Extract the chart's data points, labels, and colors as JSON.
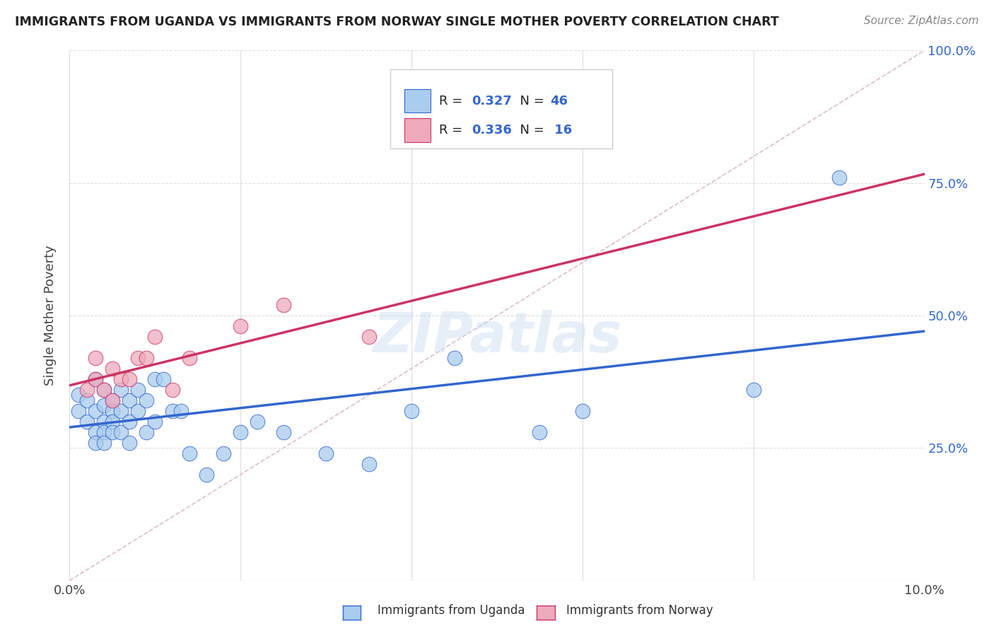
{
  "title": "IMMIGRANTS FROM UGANDA VS IMMIGRANTS FROM NORWAY SINGLE MOTHER POVERTY CORRELATION CHART",
  "source": "Source: ZipAtlas.com",
  "ylabel": "Single Mother Poverty",
  "legend_label1": "Immigrants from Uganda",
  "legend_label2": "Immigrants from Norway",
  "r1": 0.327,
  "n1": 46,
  "r2": 0.336,
  "n2": 16,
  "xlim": [
    0.0,
    0.1
  ],
  "ylim": [
    0.0,
    1.0
  ],
  "x_ticks": [
    0.0,
    0.02,
    0.04,
    0.06,
    0.08,
    0.1
  ],
  "x_tick_labels": [
    "0.0%",
    "",
    "",
    "",
    "",
    "10.0%"
  ],
  "y_ticks": [
    0.0,
    0.25,
    0.5,
    0.75,
    1.0
  ],
  "y_tick_labels": [
    "",
    "25.0%",
    "50.0%",
    "75.0%",
    "100.0%"
  ],
  "color_uganda": "#aaccee",
  "color_norway": "#eeaabb",
  "line_color_uganda": "#3366cc",
  "line_color_norway": "#cc3366",
  "diag_color": "#ddbbcc",
  "watermark": "ZIPatlas",
  "background_color": "#ffffff",
  "grid_color": "#dddddd",
  "uganda_x": [
    0.001,
    0.001,
    0.002,
    0.002,
    0.003,
    0.003,
    0.003,
    0.003,
    0.004,
    0.004,
    0.004,
    0.004,
    0.004,
    0.005,
    0.005,
    0.005,
    0.005,
    0.006,
    0.006,
    0.006,
    0.007,
    0.007,
    0.007,
    0.008,
    0.008,
    0.009,
    0.009,
    0.01,
    0.01,
    0.011,
    0.012,
    0.013,
    0.014,
    0.016,
    0.018,
    0.02,
    0.022,
    0.025,
    0.03,
    0.035,
    0.04,
    0.045,
    0.055,
    0.06,
    0.08,
    0.09
  ],
  "uganda_y": [
    0.35,
    0.32,
    0.34,
    0.3,
    0.38,
    0.32,
    0.28,
    0.26,
    0.36,
    0.33,
    0.3,
    0.28,
    0.26,
    0.34,
    0.32,
    0.3,
    0.28,
    0.36,
    0.32,
    0.28,
    0.34,
    0.3,
    0.26,
    0.36,
    0.32,
    0.34,
    0.28,
    0.38,
    0.3,
    0.38,
    0.32,
    0.32,
    0.24,
    0.2,
    0.24,
    0.28,
    0.3,
    0.28,
    0.24,
    0.22,
    0.32,
    0.42,
    0.28,
    0.32,
    0.36,
    0.76
  ],
  "norway_x": [
    0.002,
    0.003,
    0.003,
    0.004,
    0.005,
    0.005,
    0.006,
    0.007,
    0.008,
    0.009,
    0.01,
    0.012,
    0.014,
    0.02,
    0.025,
    0.035
  ],
  "norway_y": [
    0.36,
    0.38,
    0.42,
    0.36,
    0.4,
    0.34,
    0.38,
    0.38,
    0.42,
    0.42,
    0.46,
    0.36,
    0.42,
    0.48,
    0.52,
    0.46
  ]
}
